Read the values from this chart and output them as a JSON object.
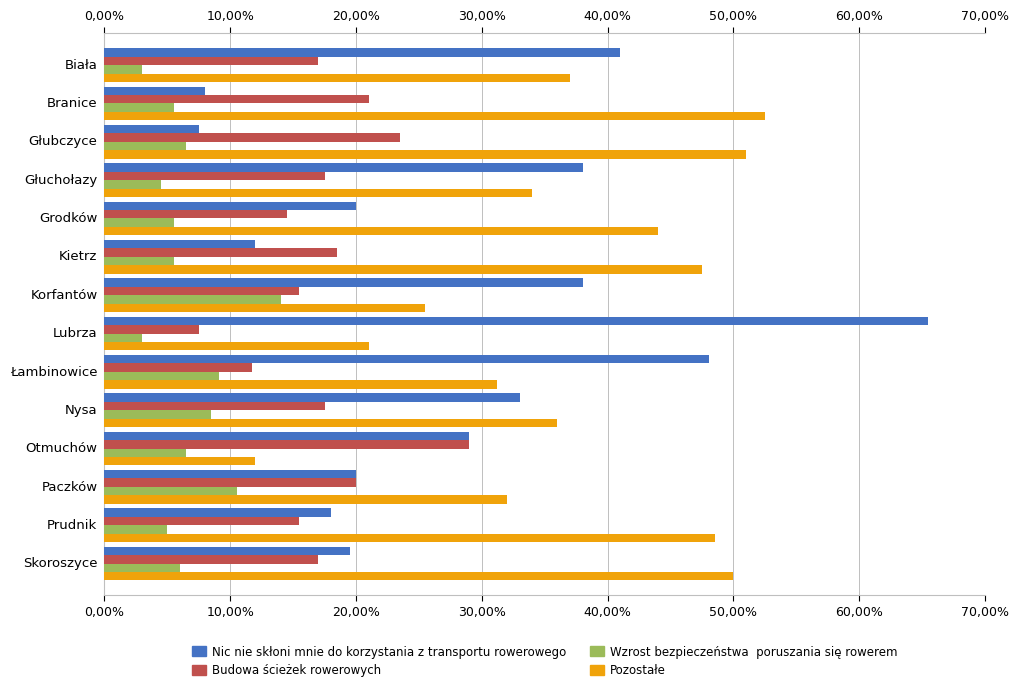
{
  "categories": [
    "Biała",
    "Branice",
    "Głubczyce",
    "Głuchołazy",
    "Grodków",
    "Kietrz",
    "Korfantów",
    "Lubrza",
    "Łambinowice",
    "Nysa",
    "Otmuchów",
    "Paczków",
    "Prudnik",
    "Skoroszyce"
  ],
  "series": {
    "Nic nie skłoni mnie do korzystania z transportu rowerowego": [
      41.0,
      8.0,
      7.5,
      38.0,
      20.0,
      12.0,
      38.0,
      65.5,
      48.05,
      33.0,
      29.0,
      20.0,
      18.0,
      19.5
    ],
    "Budowa ścieżek rowerowych": [
      17.0,
      21.0,
      23.5,
      17.5,
      14.5,
      18.5,
      15.5,
      7.5,
      11.69,
      17.5,
      29.0,
      20.0,
      15.5,
      17.0
    ],
    "Wzrost bezpieczeństwa poruszania się rowerem": [
      3.0,
      5.5,
      6.5,
      4.5,
      5.5,
      5.5,
      14.0,
      3.0,
      9.09,
      8.5,
      6.5,
      10.5,
      5.0,
      6.0
    ],
    "Pozostałe": [
      37.0,
      52.5,
      51.0,
      34.0,
      44.0,
      47.5,
      25.5,
      21.0,
      31.17,
      36.0,
      12.0,
      32.0,
      48.5,
      50.0
    ]
  },
  "colors": {
    "Nic nie skłoni mnie do korzystania z transportu rowerowego": "#4472C4",
    "Budowa ścieżek rowerowych": "#C0504D",
    "Wzrost bezpieczeństwa poruszania się rowerem": "#9BBB59",
    "Pozostałe": "#F0A30A"
  },
  "xlim": [
    0,
    70
  ],
  "xticks": [
    0,
    10,
    20,
    30,
    40,
    50,
    60,
    70
  ],
  "xticklabels": [
    "0,00%",
    "10,00%",
    "20,00%",
    "30,00%",
    "40,00%",
    "50,00%",
    "60,00%",
    "70,00%"
  ],
  "background_color": "#FFFFFF",
  "grid_color": "#BFBFBF",
  "bar_height": 0.22,
  "legend_labels": [
    "Nic nie skłoni mnie do korzystania z transportu rowerowego",
    "Budowa ścieżek rowerowych",
    "Wzrost bezpieczeństwa  poruszania się rowerem",
    "Pozostałe"
  ]
}
